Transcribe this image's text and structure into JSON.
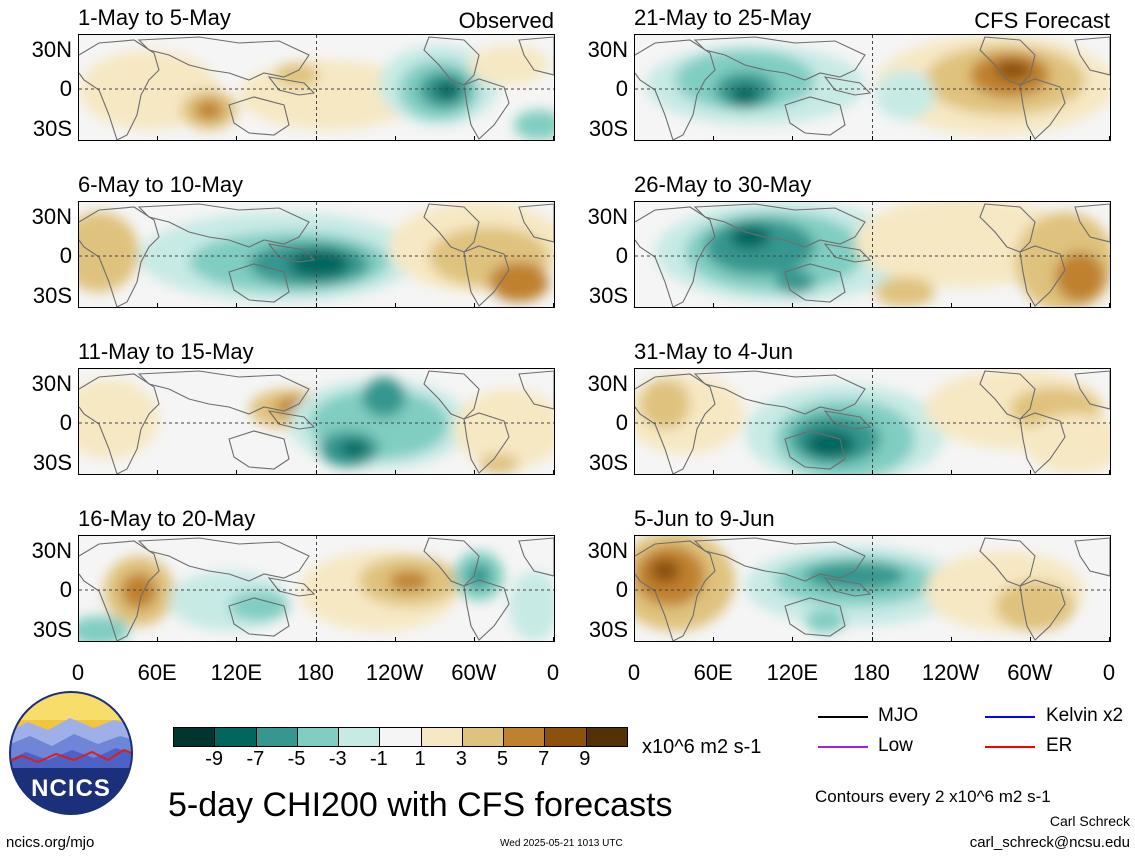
{
  "observed_label": "Observed",
  "forecast_label": "CFS Forecast",
  "panels_left": [
    {
      "title": "1-May to 5-May"
    },
    {
      "title": "6-May to 10-May"
    },
    {
      "title": "11-May to 15-May"
    },
    {
      "title": "16-May to 20-May"
    }
  ],
  "panels_right": [
    {
      "title": "21-May to 25-May"
    },
    {
      "title": "26-May to 30-May"
    },
    {
      "title": "31-May to 4-Jun"
    },
    {
      "title": "5-Jun to 9-Jun"
    }
  ],
  "lat_labels": [
    "30N",
    "0",
    "30S"
  ],
  "lon_labels": [
    "0",
    "60E",
    "120E",
    "180",
    "120W",
    "60W",
    "0"
  ],
  "colorbar": {
    "labels": [
      "-9",
      "-7",
      "-5",
      "-3",
      "-1",
      "1",
      "3",
      "5",
      "7",
      "9"
    ],
    "colors": [
      "#01352f",
      "#01665e",
      "#35978f",
      "#80cdc1",
      "#c7eae5",
      "#f5f5f5",
      "#f6e8c3",
      "#dfc27d",
      "#bf812d",
      "#8c510a",
      "#543005"
    ],
    "units": "x10^6 m2 s-1"
  },
  "main_title": "5-day CHI200 with CFS forecasts",
  "legend": {
    "mjo": "MJO",
    "kelvin": "Kelvin x2",
    "low": "Low",
    "er": "ER",
    "mjo_color": "#000000",
    "kelvin_color": "#0000ff",
    "low_color": "#a020f0",
    "er_color": "#ff0000"
  },
  "contour_note": "Contours every 2 x10^6 m2 s-1",
  "author": "Carl Schreck",
  "email": "carl_schreck@ncsu.edu",
  "website": "ncics.org/mjo",
  "timestamp": "Wed 2025-05-21 1013 UTC",
  "logo_text": "NCICS"
}
